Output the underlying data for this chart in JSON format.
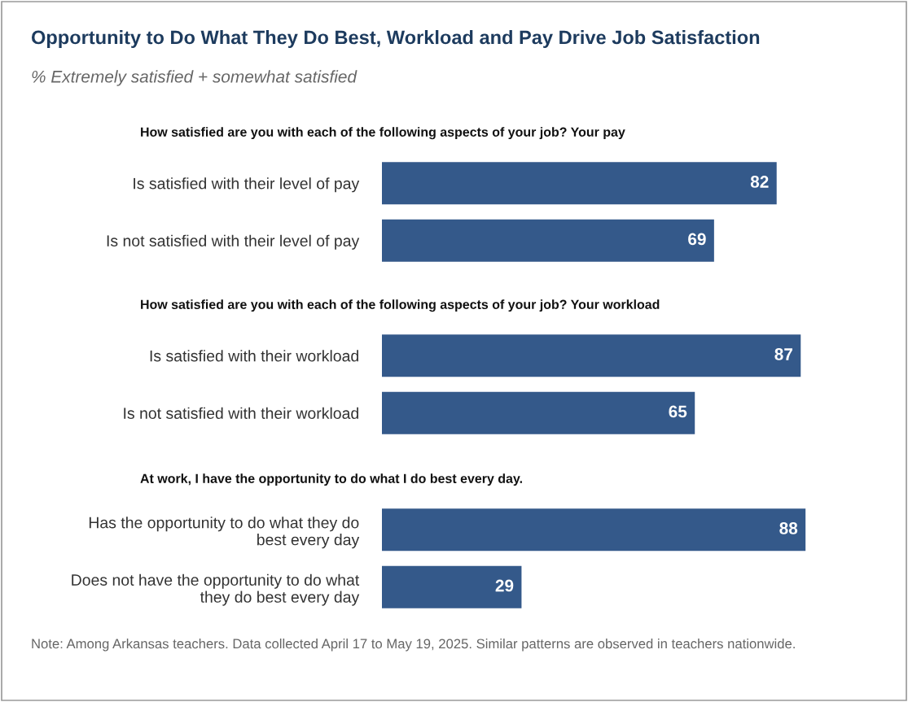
{
  "chart_data": [
    {
      "type": "other",
      "title": "Opportunity to Do What They Do Best, Workload and Pay Drive Job Satisfaction",
      "subtitle": "% Extremely satisfied + somewhat satisfied",
      "annotations": [
        "Note: Among Arkansas teachers. Data collected April 17 to May 19, 2025. Similar patterns are observed in teachers nationwide."
      ]
    },
    {
      "type": "bar",
      "orientation": "horizontal",
      "title": "How satisfied are you with each of the following aspects of your job? Your pay",
      "categories": [
        "Is satisfied with their level of pay",
        "Is not satisfied with their level of pay"
      ],
      "values": [
        82,
        69
      ],
      "color": "#34598a",
      "data_labels": true
    },
    {
      "type": "bar",
      "orientation": "horizontal",
      "title": "How satisfied are you with each of the following aspects of your job? Your workload",
      "categories": [
        "Is satisfied with their workload",
        "Is not satisfied with their workload"
      ],
      "values": [
        87,
        65
      ],
      "color": "#34598a",
      "data_labels": true
    },
    {
      "type": "bar",
      "orientation": "horizontal",
      "title": "At work, I have the opportunity to do what I do best every day.",
      "categories": [
        "Has the opportunity to do what they do\nbest every day",
        "Does not have the opportunity to do what\nthey do best every day"
      ],
      "values": [
        88,
        29
      ],
      "color": "#34598a",
      "data_labels": true
    }
  ]
}
